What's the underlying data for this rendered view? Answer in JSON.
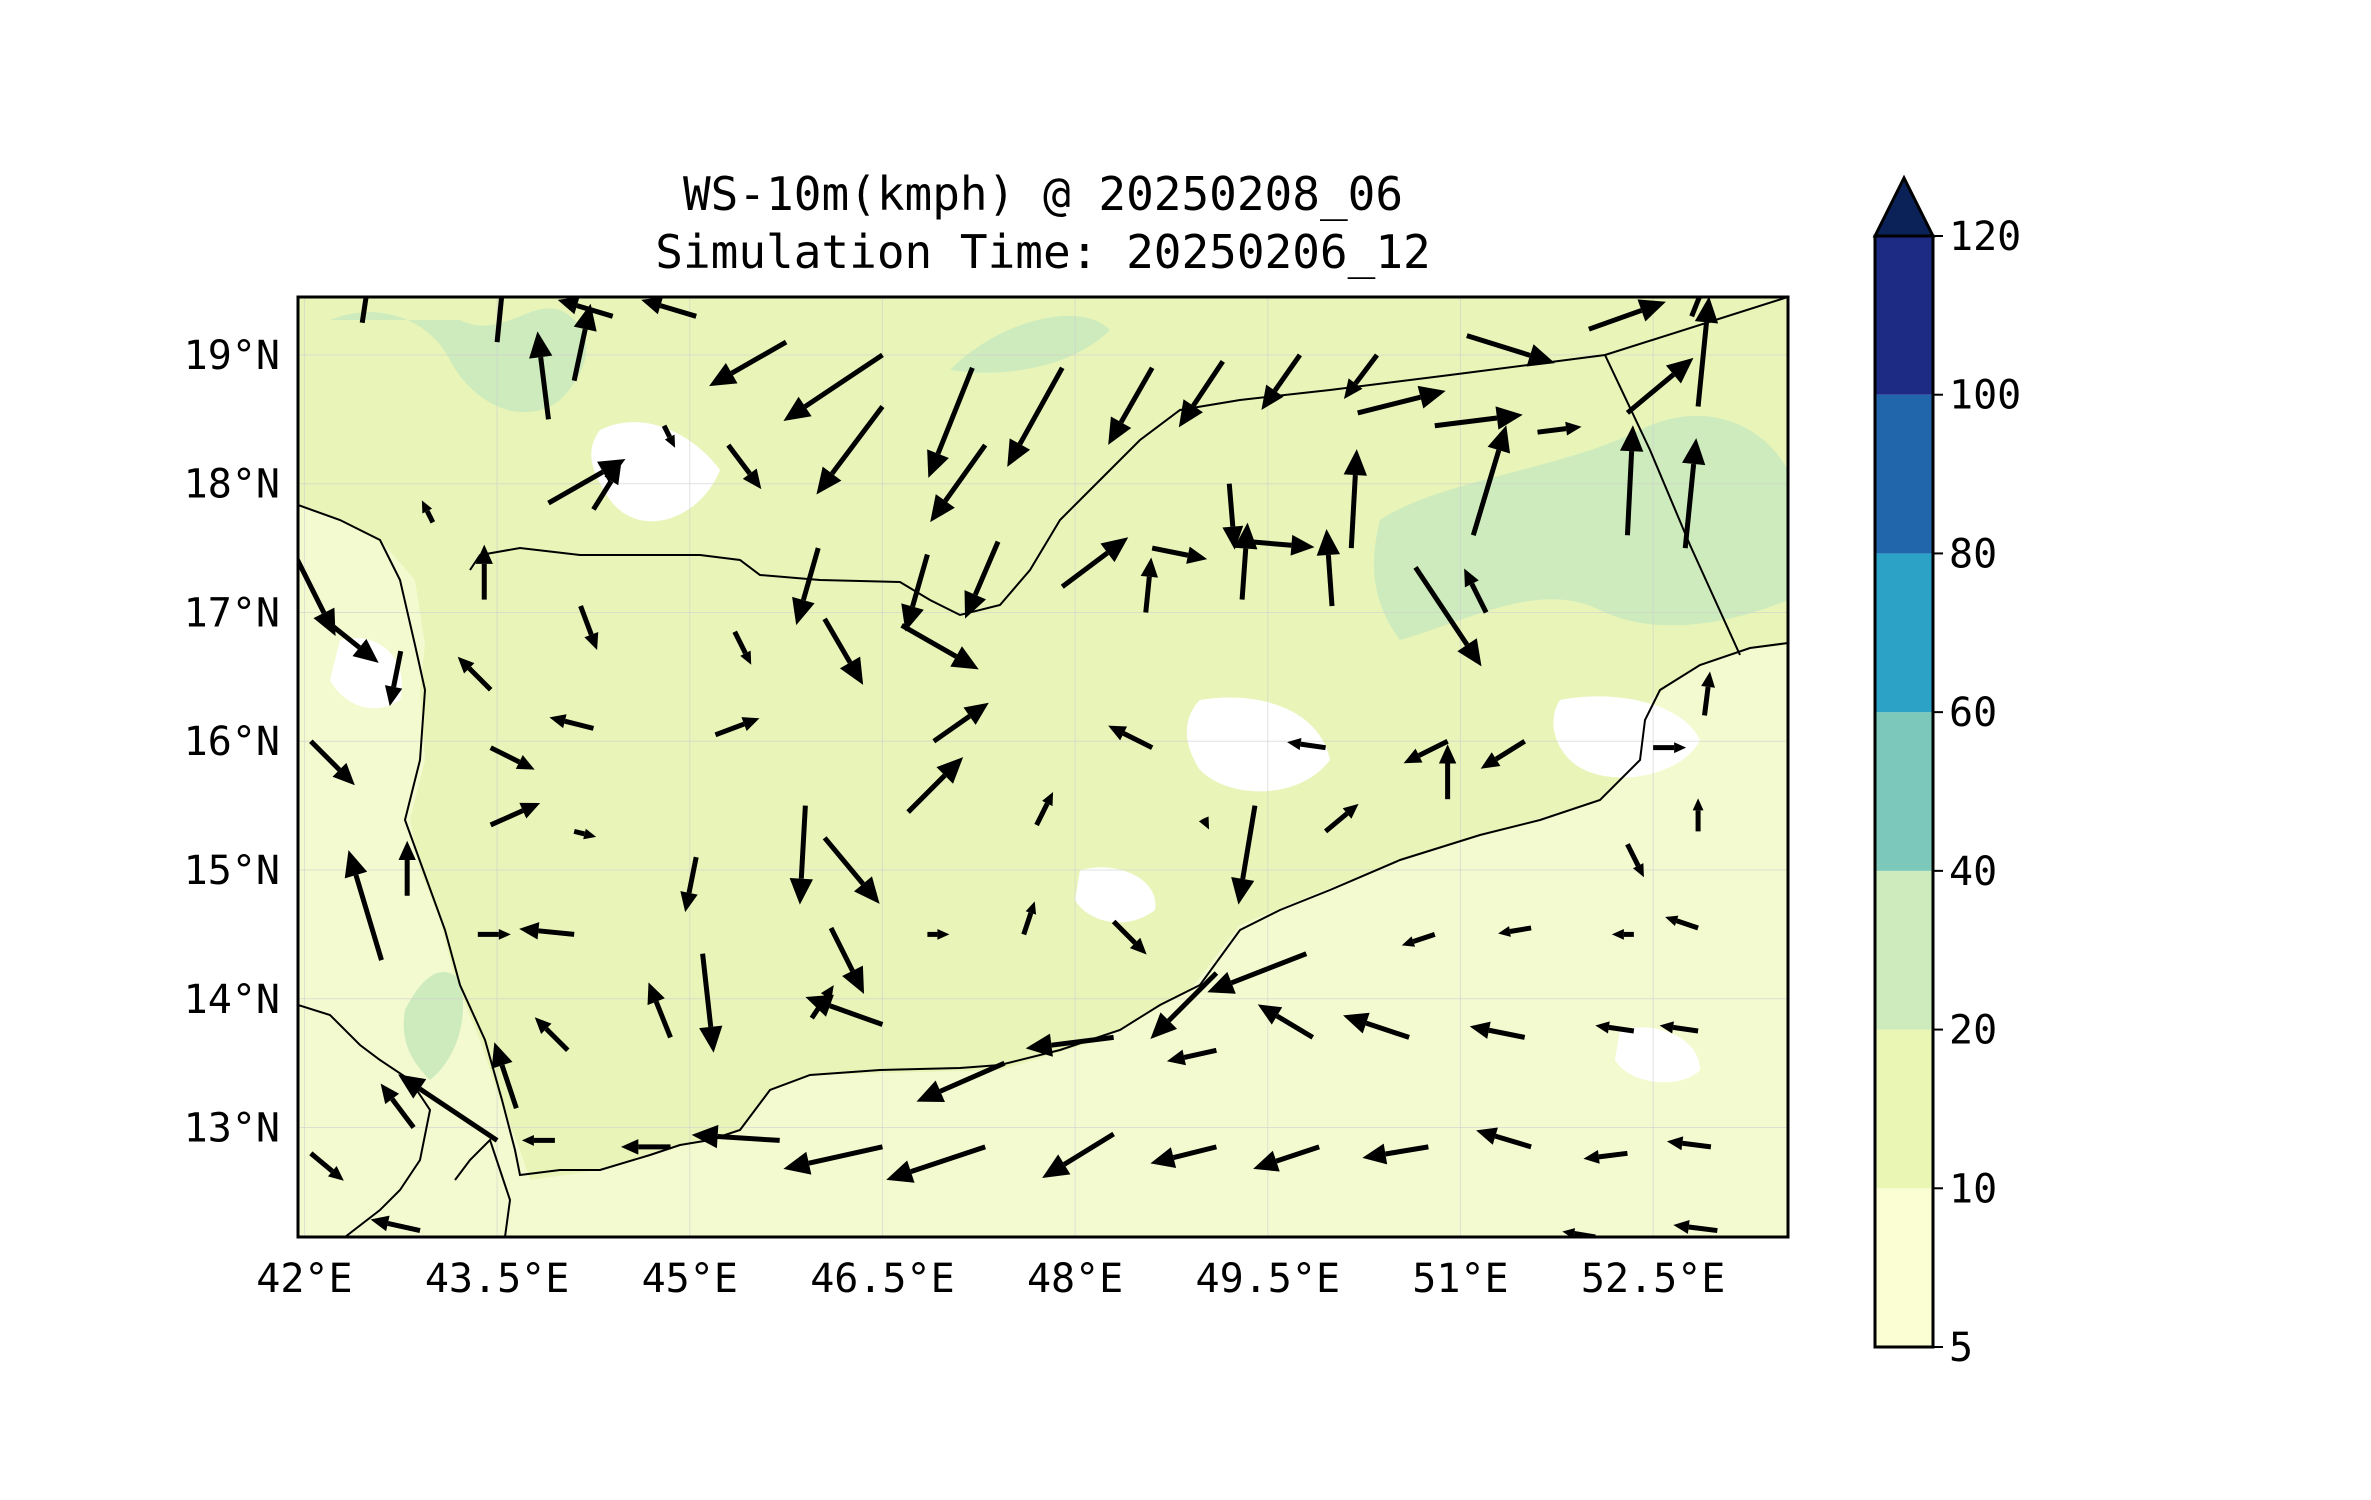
{
  "title": "WS-10m(kmph) @ 20250208_06",
  "subtitle": "Simulation Time: 20250206_12",
  "map": {
    "lon_range": [
      41.95,
      53.55
    ],
    "lat_range": [
      12.15,
      19.45
    ],
    "lon_ticks": [
      {
        "value": 42,
        "label": "42°E"
      },
      {
        "value": 43.5,
        "label": "43.5°E"
      },
      {
        "value": 45,
        "label": "45°E"
      },
      {
        "value": 46.5,
        "label": "46.5°E"
      },
      {
        "value": 48,
        "label": "48°E"
      },
      {
        "value": 49.5,
        "label": "49.5°E"
      },
      {
        "value": 51,
        "label": "51°E"
      },
      {
        "value": 52.5,
        "label": "52.5°E"
      }
    ],
    "lat_ticks": [
      {
        "value": 19,
        "label": "19°N"
      },
      {
        "value": 18,
        "label": "18°N"
      },
      {
        "value": 17,
        "label": "17°N"
      },
      {
        "value": 16,
        "label": "16°N"
      },
      {
        "value": 15,
        "label": "15°N"
      },
      {
        "value": 14,
        "label": "14°N"
      },
      {
        "value": 13,
        "label": "13°N"
      }
    ],
    "gridlines": true,
    "land_color": "#e8f4b8",
    "sea_color": "#f4fad0",
    "calm_color": "#ffffff",
    "strong_color": "#cdebbd"
  },
  "colorbar": {
    "extend": "max",
    "extend_color": "#0b2258",
    "levels": [
      {
        "value": 5,
        "label": "5",
        "color": "#fbfed2"
      },
      {
        "value": 10,
        "label": "10",
        "color": "#e9f6b4"
      },
      {
        "value": 20,
        "label": "20",
        "color": "#cdebbd"
      },
      {
        "value": 40,
        "label": "40",
        "color": "#7cc8bb"
      },
      {
        "value": 60,
        "label": "60",
        "color": "#2ca2c6"
      },
      {
        "value": 80,
        "label": "80",
        "color": "#2166ab"
      },
      {
        "value": 100,
        "label": "100",
        "color": "#1e2b84"
      },
      {
        "value": 120,
        "label": "120",
        "color": ""
      }
    ]
  },
  "vectors": [
    [
      42.45,
      19.25,
      0.15,
      1.0
    ],
    [
      43.5,
      19.1,
      0.1,
      1.0
    ],
    [
      44.4,
      19.3,
      -0.5,
      0.15
    ],
    [
      45.05,
      19.3,
      -0.5,
      0.15
    ],
    [
      45.75,
      19.1,
      -0.7,
      -0.4
    ],
    [
      46.5,
      19.0,
      -0.9,
      -0.6
    ],
    [
      47.2,
      18.9,
      -0.4,
      -1.0
    ],
    [
      47.9,
      18.9,
      -0.5,
      -0.9
    ],
    [
      48.6,
      18.9,
      -0.4,
      -0.7
    ],
    [
      49.15,
      18.95,
      -0.4,
      -0.6
    ],
    [
      49.75,
      19.0,
      -0.35,
      -0.5
    ],
    [
      50.35,
      19.0,
      -0.3,
      -0.4
    ],
    [
      51.05,
      19.15,
      0.8,
      -0.25
    ],
    [
      52.0,
      19.2,
      0.7,
      0.25
    ],
    [
      52.8,
      19.3,
      0.2,
      0.5
    ],
    [
      43.9,
      18.5,
      -0.1,
      0.8
    ],
    [
      44.1,
      18.8,
      0.15,
      0.7
    ],
    [
      44.8,
      18.45,
      0.1,
      -0.2
    ],
    [
      45.3,
      18.3,
      0.3,
      -0.4
    ],
    [
      46.5,
      18.6,
      -0.6,
      -0.8
    ],
    [
      47.3,
      18.3,
      -0.5,
      -0.7
    ],
    [
      49.2,
      18.0,
      0.05,
      -0.6
    ],
    [
      50.2,
      18.55,
      0.8,
      0.2
    ],
    [
      50.8,
      18.45,
      0.8,
      0.1
    ],
    [
      51.6,
      18.4,
      0.4,
      0.05
    ],
    [
      52.3,
      18.55,
      0.6,
      0.5
    ],
    [
      52.85,
      18.6,
      0.1,
      1.0
    ],
    [
      43.9,
      17.85,
      0.7,
      0.4
    ],
    [
      43.0,
      17.7,
      -0.1,
      0.2
    ],
    [
      44.25,
      17.8,
      0.25,
      0.4
    ],
    [
      46.0,
      17.5,
      -0.2,
      -0.7
    ],
    [
      46.85,
      17.45,
      -0.2,
      -0.7
    ],
    [
      47.4,
      17.55,
      -0.3,
      -0.7
    ],
    [
      48.6,
      17.5,
      0.5,
      -0.1
    ],
    [
      49.35,
      17.55,
      0.6,
      -0.05
    ],
    [
      50.15,
      17.5,
      0.05,
      0.9
    ],
    [
      50.65,
      17.35,
      0.6,
      -0.9
    ],
    [
      51.1,
      17.6,
      0.3,
      1.0
    ],
    [
      52.3,
      17.6,
      0.05,
      1.0
    ],
    [
      52.75,
      17.5,
      0.1,
      1.0
    ],
    [
      41.9,
      17.5,
      0.4,
      -0.8
    ],
    [
      43.4,
      17.1,
      0.0,
      0.5
    ],
    [
      44.15,
      17.05,
      0.15,
      -0.4
    ],
    [
      45.35,
      16.85,
      0.15,
      -0.3
    ],
    [
      46.05,
      16.95,
      0.35,
      -0.6
    ],
    [
      46.65,
      16.9,
      0.7,
      -0.4
    ],
    [
      47.9,
      17.2,
      0.6,
      0.45
    ],
    [
      48.55,
      17.0,
      0.05,
      0.5
    ],
    [
      49.3,
      17.1,
      0.05,
      0.7
    ],
    [
      50.0,
      17.05,
      -0.05,
      0.7
    ],
    [
      51.2,
      17.0,
      -0.2,
      0.4
    ],
    [
      52.9,
      16.2,
      0.05,
      0.4
    ],
    [
      42.15,
      16.95,
      0.5,
      -0.4
    ],
    [
      42.75,
      16.7,
      -0.1,
      -0.5
    ],
    [
      43.45,
      16.4,
      -0.3,
      0.3
    ],
    [
      44.25,
      16.1,
      -0.4,
      0.1
    ],
    [
      43.45,
      15.95,
      0.4,
      -0.2
    ],
    [
      45.2,
      16.05,
      0.4,
      0.15
    ],
    [
      46.9,
      16.0,
      0.5,
      0.35
    ],
    [
      45.9,
      15.5,
      -0.05,
      -0.9
    ],
    [
      48.6,
      15.95,
      -0.4,
      0.2
    ],
    [
      49.4,
      15.5,
      -0.15,
      -0.9
    ],
    [
      49.95,
      15.95,
      -0.35,
      0.05
    ],
    [
      50.9,
      16.0,
      -0.4,
      -0.2
    ],
    [
      51.5,
      16.0,
      -0.4,
      -0.25
    ],
    [
      52.5,
      15.95,
      0.3,
      0.0
    ],
    [
      42.05,
      16.0,
      0.4,
      -0.4
    ],
    [
      43.45,
      15.35,
      0.45,
      0.2
    ],
    [
      44.1,
      15.3,
      0.2,
      -0.05
    ],
    [
      45.05,
      15.1,
      -0.1,
      -0.5
    ],
    [
      46.7,
      15.45,
      0.5,
      0.5
    ],
    [
      47.7,
      15.35,
      0.15,
      0.3
    ],
    [
      49.0,
      15.4,
      0.05,
      -0.1
    ],
    [
      49.95,
      15.3,
      0.3,
      0.25
    ],
    [
      50.9,
      15.55,
      0.0,
      0.5
    ],
    [
      52.3,
      15.2,
      0.15,
      -0.3
    ],
    [
      52.85,
      15.3,
      0.0,
      0.3
    ],
    [
      42.8,
      14.8,
      0.0,
      0.5
    ],
    [
      42.6,
      14.3,
      -0.3,
      1.0
    ],
    [
      43.35,
      14.5,
      0.3,
      0.0
    ],
    [
      44.1,
      14.5,
      -0.5,
      0.05
    ],
    [
      45.1,
      14.35,
      0.1,
      -0.9
    ],
    [
      46.05,
      15.25,
      0.5,
      -0.6
    ],
    [
      46.1,
      14.55,
      0.3,
      -0.6
    ],
    [
      46.85,
      14.5,
      0.2,
      0.0
    ],
    [
      47.6,
      14.5,
      0.1,
      0.3
    ],
    [
      48.3,
      14.6,
      0.3,
      -0.3
    ],
    [
      49.1,
      14.2,
      -0.6,
      -0.6
    ],
    [
      49.8,
      14.35,
      -0.9,
      -0.35
    ],
    [
      50.8,
      14.5,
      -0.3,
      -0.1
    ],
    [
      51.55,
      14.55,
      -0.3,
      -0.05
    ],
    [
      52.35,
      14.5,
      -0.2,
      0.0
    ],
    [
      52.85,
      14.55,
      -0.3,
      0.1
    ],
    [
      44.05,
      13.6,
      -0.3,
      0.3
    ],
    [
      44.85,
      13.7,
      -0.2,
      0.5
    ],
    [
      46.5,
      13.8,
      -0.7,
      0.25
    ],
    [
      45.95,
      13.85,
      0.2,
      0.3
    ],
    [
      47.45,
      13.5,
      -0.8,
      -0.35
    ],
    [
      48.3,
      13.7,
      -0.8,
      -0.1
    ],
    [
      49.1,
      13.6,
      -0.45,
      -0.1
    ],
    [
      49.85,
      13.7,
      -0.5,
      0.3
    ],
    [
      50.6,
      13.7,
      -0.6,
      0.2
    ],
    [
      51.5,
      13.7,
      -0.5,
      0.1
    ],
    [
      52.35,
      13.75,
      -0.35,
      0.05
    ],
    [
      52.85,
      13.75,
      -0.35,
      0.05
    ],
    [
      43.65,
      13.15,
      -0.2,
      0.6
    ],
    [
      42.85,
      13.0,
      -0.3,
      0.4
    ],
    [
      43.5,
      12.9,
      -0.9,
      0.6
    ],
    [
      43.95,
      12.9,
      -0.3,
      0.0
    ],
    [
      44.85,
      12.85,
      -0.45,
      0.0
    ],
    [
      45.7,
      12.9,
      -0.8,
      0.05
    ],
    [
      46.5,
      12.85,
      -0.9,
      -0.2
    ],
    [
      47.3,
      12.85,
      -0.9,
      -0.3
    ],
    [
      48.3,
      12.95,
      -0.65,
      -0.4
    ],
    [
      49.1,
      12.85,
      -0.6,
      -0.15
    ],
    [
      49.9,
      12.85,
      -0.6,
      -0.2
    ],
    [
      50.75,
      12.85,
      -0.6,
      -0.1
    ],
    [
      51.55,
      12.85,
      -0.5,
      0.15
    ],
    [
      52.3,
      12.8,
      -0.4,
      -0.05
    ],
    [
      52.95,
      12.85,
      -0.4,
      0.05
    ],
    [
      42.05,
      12.8,
      0.3,
      -0.25
    ],
    [
      42.9,
      12.2,
      -0.45,
      0.1
    ],
    [
      52.05,
      12.15,
      -0.3,
      0.05
    ],
    [
      53.0,
      12.2,
      -0.4,
      0.05
    ]
  ]
}
